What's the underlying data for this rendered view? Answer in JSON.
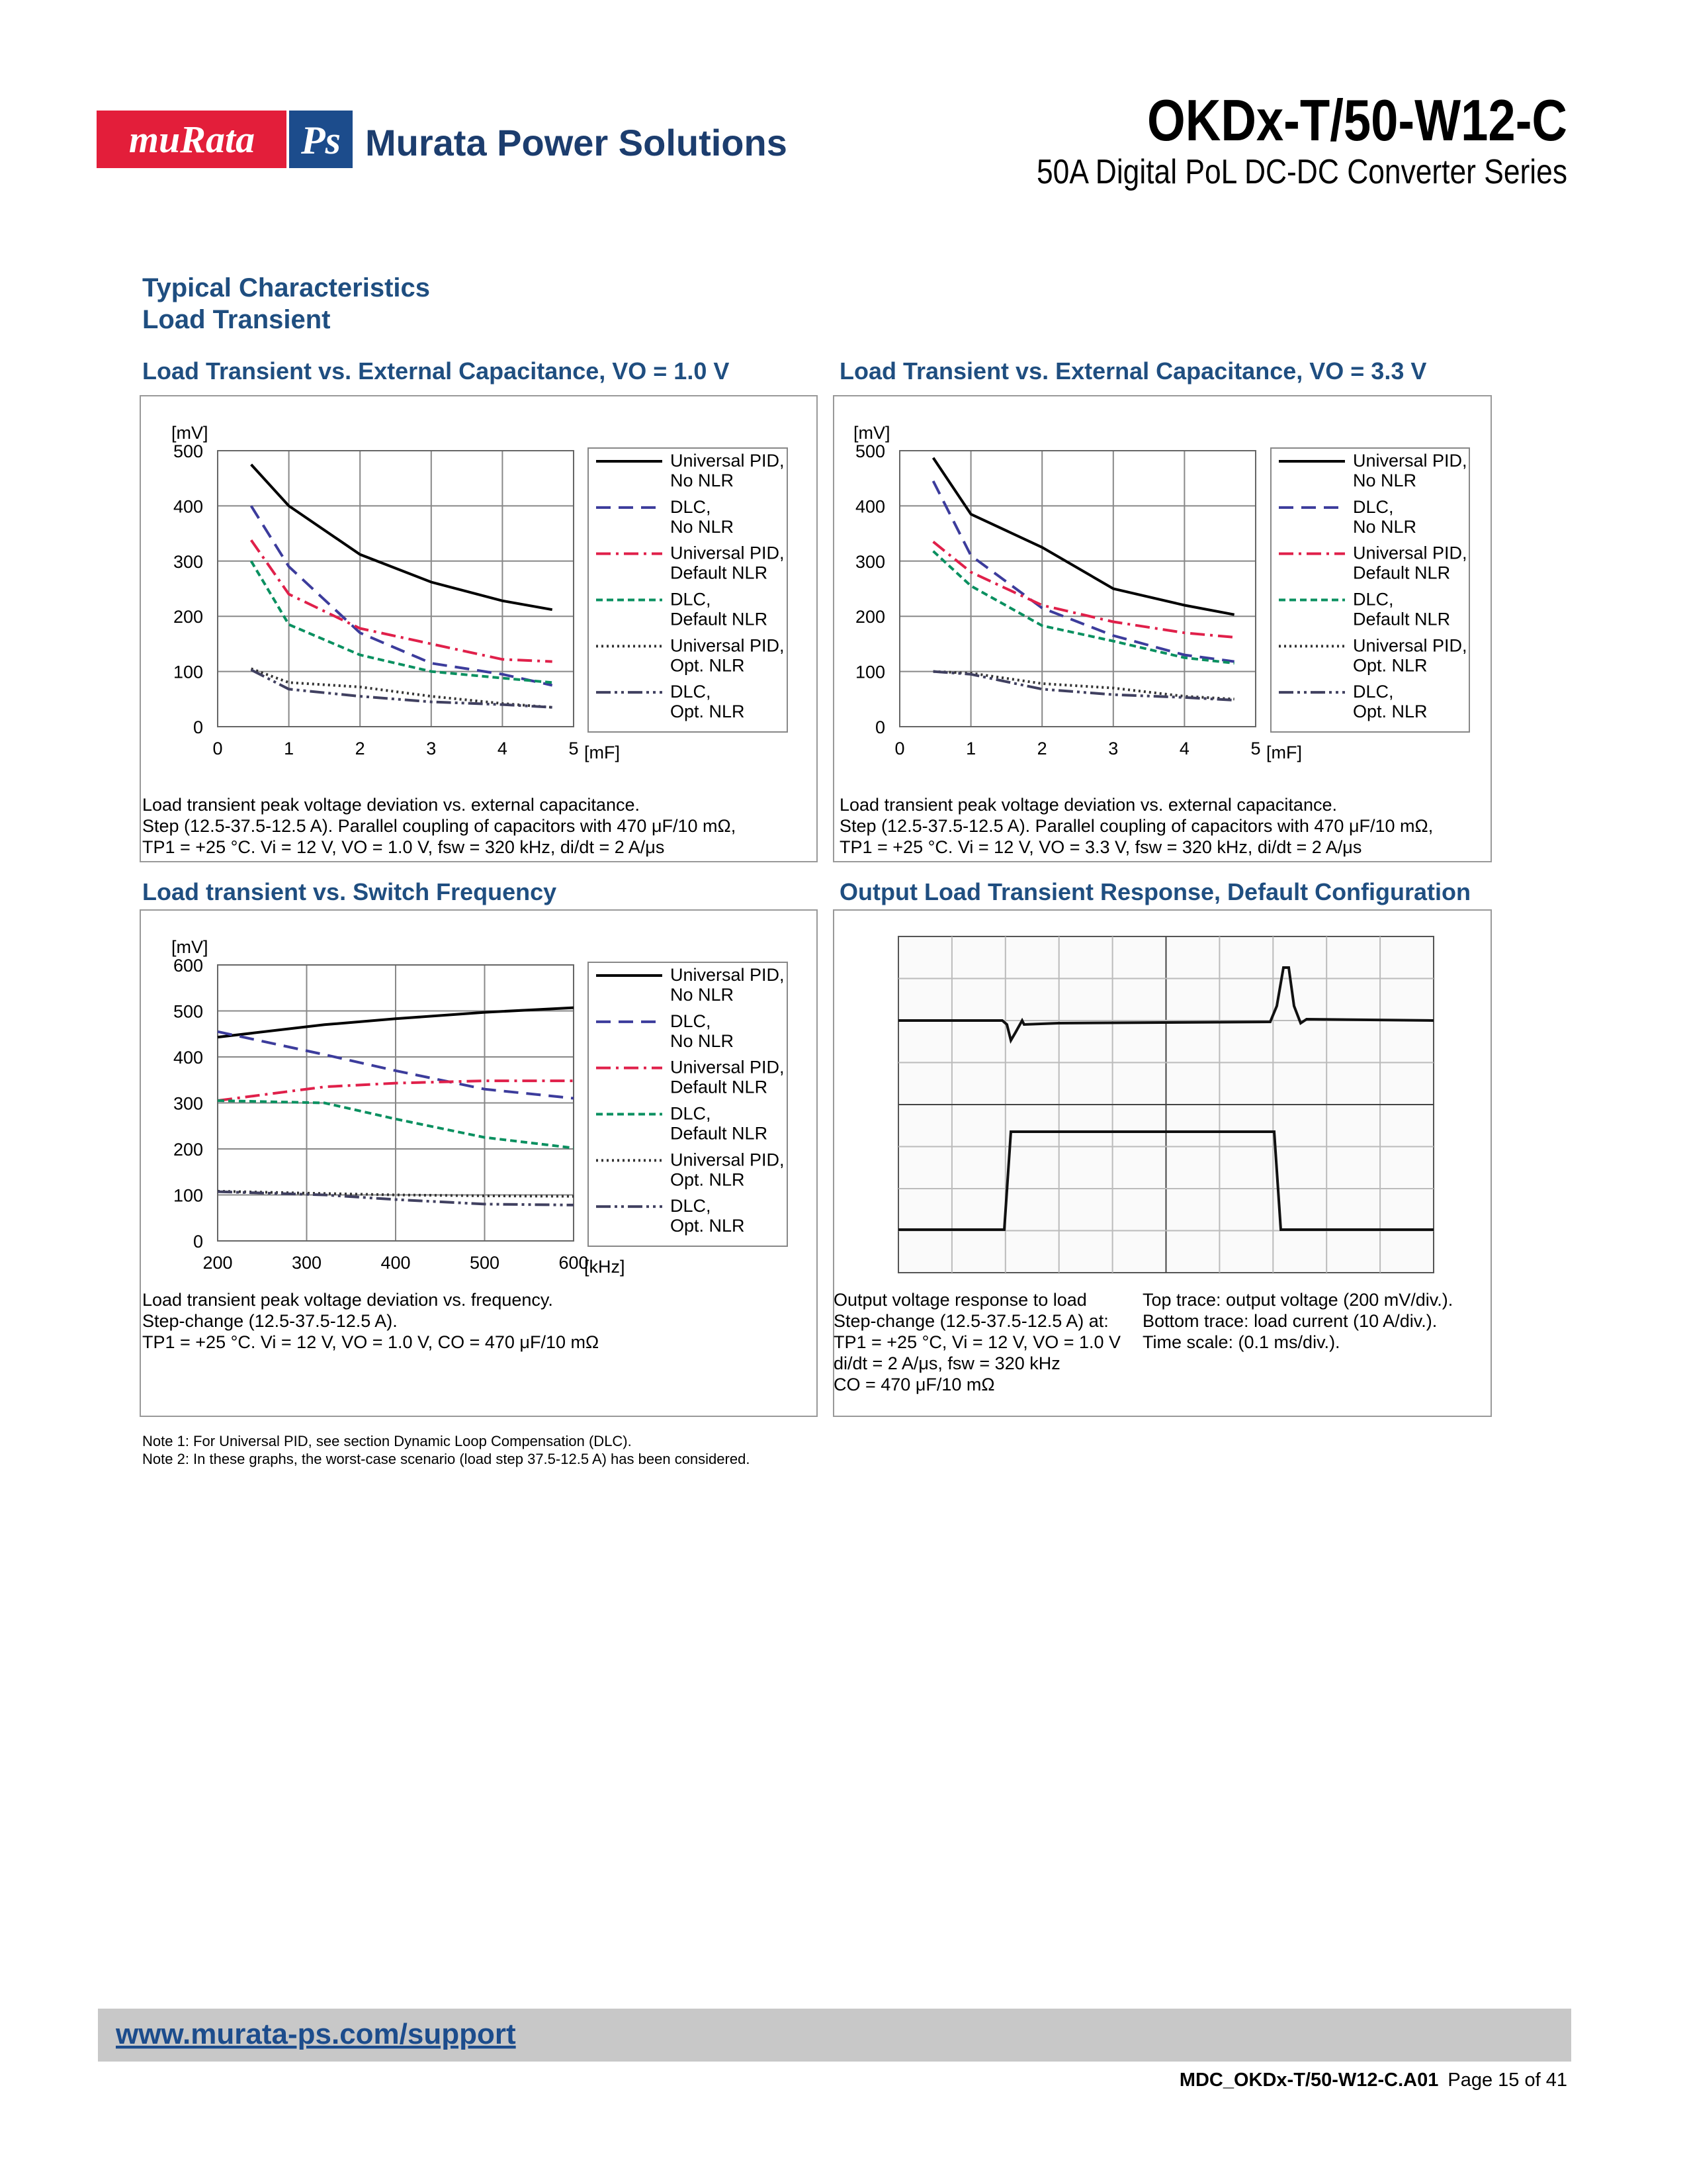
{
  "header": {
    "brand_left": "muRata",
    "brand_right": "Ps",
    "company": "Murata Power Solutions",
    "product": "OKDx-T/50-W12-C",
    "description": "50A Digital PoL DC-DC Converter Series"
  },
  "section": {
    "title": "Typical Characteristics",
    "subtitle": "Load Transient"
  },
  "chart_data": [
    {
      "type": "line",
      "title": "Load Transient vs. External Capacitance, VO = 1.0 V",
      "y_label": "[mV]",
      "x_label": "[mF]",
      "x": [
        0.47,
        1,
        2,
        3,
        4,
        4.7
      ],
      "xlim": [
        0,
        5
      ],
      "ylim": [
        0,
        500
      ],
      "xticks": [
        0,
        1,
        2,
        3,
        4,
        5
      ],
      "yticks": [
        0,
        100,
        200,
        300,
        400,
        500
      ],
      "grid": true,
      "legend": "right",
      "series": [
        {
          "name": "Universal PID, No NLR",
          "color": "#000000",
          "dash": "solid",
          "values": [
            475,
            400,
            312,
            262,
            228,
            212
          ]
        },
        {
          "name": "DLC, No NLR",
          "color": "#3c3c9c",
          "dash": "dashed",
          "values": [
            400,
            290,
            170,
            115,
            95,
            75
          ]
        },
        {
          "name": "Universal PID, Default NLR",
          "color": "#e0204a",
          "dash": "dashdot",
          "values": [
            338,
            240,
            178,
            150,
            122,
            118
          ]
        },
        {
          "name": "DLC, Default NLR",
          "color": "#0a9060",
          "dash": "shortdash",
          "values": [
            300,
            185,
            130,
            100,
            88,
            80
          ]
        },
        {
          "name": "Universal PID, Opt. NLR",
          "color": "#333333",
          "dash": "dotted",
          "values": [
            105,
            80,
            72,
            55,
            42,
            35
          ]
        },
        {
          "name": "DLC, Opt. NLR",
          "color": "#404060",
          "dash": "dashdotdot",
          "values": [
            103,
            68,
            55,
            45,
            40,
            35
          ]
        }
      ],
      "caption": [
        "Load transient peak voltage deviation vs. external capacitance.",
        "Step (12.5-37.5-12.5 A). Parallel coupling of capacitors with 470 μF/10 mΩ,",
        "TP1 = +25 °C. Vi = 12 V, VO = 1.0 V, fsw = 320 kHz, di/dt = 2 A/μs"
      ]
    },
    {
      "type": "line",
      "title": "Load Transient vs. External Capacitance, VO = 3.3 V",
      "y_label": "[mV]",
      "x_label": "[mF]",
      "x": [
        0.47,
        1,
        2,
        3,
        4,
        4.7
      ],
      "xlim": [
        0,
        5
      ],
      "ylim": [
        0,
        500
      ],
      "xticks": [
        0,
        1,
        2,
        3,
        4,
        5
      ],
      "yticks": [
        0,
        100,
        200,
        300,
        400,
        500
      ],
      "grid": true,
      "legend": "right",
      "series": [
        {
          "name": "Universal PID, No NLR",
          "color": "#000000",
          "dash": "solid",
          "values": [
            487,
            385,
            325,
            250,
            220,
            203
          ]
        },
        {
          "name": "DLC, No NLR",
          "color": "#3c3c9c",
          "dash": "dashed",
          "values": [
            445,
            310,
            215,
            165,
            130,
            118
          ]
        },
        {
          "name": "Universal PID, Default NLR",
          "color": "#e0204a",
          "dash": "dashdot",
          "values": [
            335,
            280,
            220,
            190,
            170,
            162
          ]
        },
        {
          "name": "DLC, Default NLR",
          "color": "#0a9060",
          "dash": "shortdash",
          "values": [
            318,
            255,
            183,
            155,
            125,
            115
          ]
        },
        {
          "name": "Universal PID, Opt. NLR",
          "color": "#333333",
          "dash": "dotted",
          "values": [
            100,
            97,
            78,
            70,
            55,
            50
          ]
        },
        {
          "name": "DLC, Opt. NLR",
          "color": "#404060",
          "dash": "dashdotdot",
          "values": [
            100,
            95,
            68,
            58,
            53,
            48
          ]
        }
      ],
      "caption": [
        "Load transient peak voltage deviation vs. external capacitance.",
        "Step (12.5-37.5-12.5 A). Parallel coupling of capacitors with 470 μF/10 mΩ,",
        "TP1 = +25 °C. Vi = 12 V, VO = 3.3 V, fsw = 320 kHz, di/dt = 2 A/μs"
      ]
    },
    {
      "type": "line",
      "title": "Load transient vs. Switch Frequency",
      "y_label": "[mV]",
      "x_label": "[kHz]",
      "x": [
        200,
        320,
        400,
        500,
        600
      ],
      "xlim": [
        200,
        600
      ],
      "ylim": [
        0,
        600
      ],
      "xticks": [
        200,
        300,
        400,
        500,
        600
      ],
      "yticks": [
        0,
        100,
        200,
        300,
        400,
        500,
        600
      ],
      "grid": true,
      "legend": "right",
      "series": [
        {
          "name": "Universal PID, No NLR",
          "color": "#000000",
          "dash": "solid",
          "values": [
            443,
            470,
            483,
            497,
            507
          ]
        },
        {
          "name": "DLC, No NLR",
          "color": "#3c3c9c",
          "dash": "dashed",
          "values": [
            455,
            405,
            370,
            330,
            310
          ]
        },
        {
          "name": "Universal PID, Default NLR",
          "color": "#e0204a",
          "dash": "dashdot",
          "values": [
            305,
            335,
            343,
            348,
            348
          ]
        },
        {
          "name": "DLC, Default NLR",
          "color": "#0a9060",
          "dash": "shortdash",
          "values": [
            305,
            300,
            265,
            225,
            202
          ]
        },
        {
          "name": "Universal PID, Opt. NLR",
          "color": "#333333",
          "dash": "dotted",
          "values": [
            108,
            103,
            100,
            98,
            97
          ]
        },
        {
          "name": "DLC, Opt. NLR",
          "color": "#404060",
          "dash": "dashdotdot",
          "values": [
            107,
            100,
            90,
            80,
            78
          ]
        }
      ],
      "caption": [
        "Load transient peak voltage deviation vs. frequency.",
        "Step-change (12.5-37.5-12.5 A).",
        "TP1 = +25 °C. Vi = 12 V, VO = 1.0 V, CO = 470 μF/10 mΩ"
      ]
    }
  ],
  "scope": {
    "title": "Output Load Transient Response, Default Configuration",
    "caption_left": [
      "Output voltage response to load",
      "Step-change (12.5-37.5-12.5 A) at:",
      "TP1 = +25 °C, Vi = 12 V, VO = 1.0 V",
      "di/dt = 2 A/μs, fsw = 320 kHz",
      "CO = 470 μF/10 mΩ"
    ],
    "caption_right": [
      "Top trace: output voltage (200 mV/div.).",
      "Bottom trace: load current (10 A/div.).",
      "Time scale: (0.1 ms/div.)."
    ]
  },
  "notes": [
    "Note 1: For Universal PID, see section Dynamic Loop Compensation (DLC).",
    "Note 2: In these graphs, the worst-case scenario (load step 37.5-12.5 A) has been considered."
  ],
  "footer": {
    "link": "www.murata-ps.com/support",
    "document_id": "MDC_OKDx-T/50-W12-C.A01",
    "page": "Page 15 of 41"
  }
}
